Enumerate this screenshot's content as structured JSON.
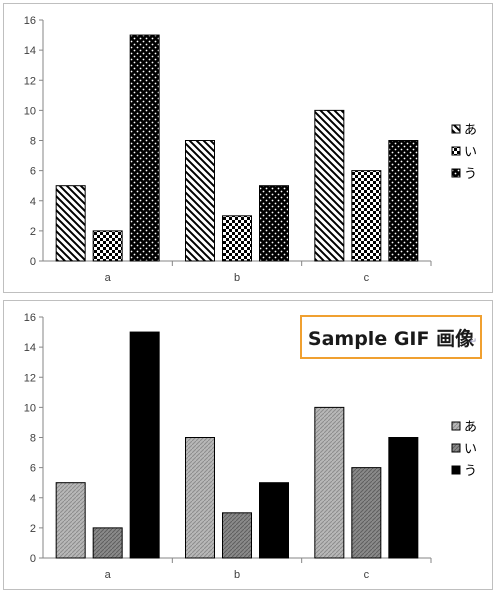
{
  "sample_label": "Sample GIF 画像",
  "chart_data": [
    {
      "type": "bar",
      "categories": [
        "a",
        "b",
        "c"
      ],
      "series": [
        {
          "name": "あ",
          "values": [
            5,
            8,
            10
          ],
          "fill": "diagonal-stripes"
        },
        {
          "name": "い",
          "values": [
            2,
            3,
            6
          ],
          "fill": "checkerboard"
        },
        {
          "name": "う",
          "values": [
            15,
            5,
            8
          ],
          "fill": "dotted-black"
        }
      ],
      "yticks": [
        "0",
        "2",
        "4",
        "6",
        "8",
        "10",
        "12",
        "14",
        "16"
      ],
      "ylim": [
        0,
        16
      ],
      "legend_position": "right",
      "grid": false
    },
    {
      "type": "bar",
      "categories": [
        "a",
        "b",
        "c"
      ],
      "series": [
        {
          "name": "あ",
          "values": [
            5,
            8,
            10
          ],
          "fill": "light-gray-hatch"
        },
        {
          "name": "い",
          "values": [
            2,
            3,
            6
          ],
          "fill": "medium-gray-hatch"
        },
        {
          "name": "う",
          "values": [
            15,
            5,
            8
          ],
          "fill": "black"
        }
      ],
      "yticks": [
        "0",
        "2",
        "4",
        "6",
        "8",
        "10",
        "12",
        "14",
        "16"
      ],
      "ylim": [
        0,
        16
      ],
      "legend_position": "right",
      "grid": false
    }
  ]
}
